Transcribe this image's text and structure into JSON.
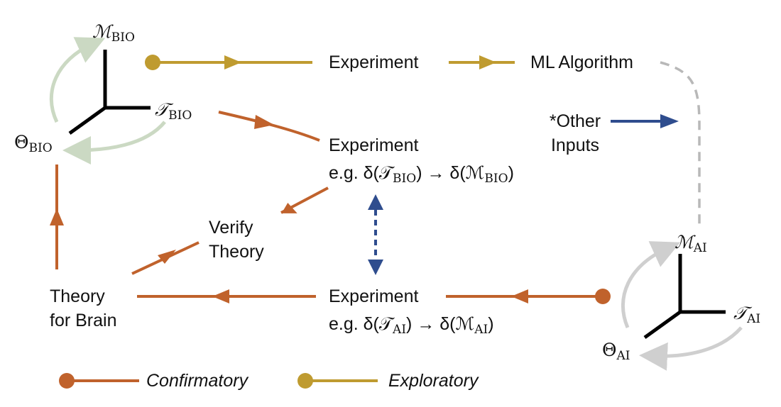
{
  "colors": {
    "confirmatory": "#C0622C",
    "exploratory": "#BF9B30",
    "bidirectional": "#2F4D8E",
    "bio_loop": "#CBD9C3",
    "ai_loop": "#CFCFCF",
    "dashed": "#B8B8B8",
    "axes": "#000000"
  },
  "bio": {
    "m_symbol": "ℳ",
    "m_sub": "BIO",
    "t_symbol": "𝒯",
    "t_sub": "BIO",
    "theta_symbol": "Θ",
    "theta_sub": "BIO"
  },
  "ai": {
    "m_symbol": "ℳ",
    "m_sub": "AI",
    "t_symbol": "𝒯",
    "t_sub": "AI",
    "theta_symbol": "Θ",
    "theta_sub": "AI"
  },
  "nodes": {
    "experiment_top": "Experiment",
    "ml_algorithm": "ML Algorithm",
    "other_inputs_line1": "*Other",
    "other_inputs_line2": "Inputs",
    "experiment_bio": "Experiment",
    "experiment_bio_eg": "e.g. δ(𝒯",
    "experiment_bio_eg_sub1": "BIO",
    "experiment_bio_eg_mid": ") → δ(ℳ",
    "experiment_bio_eg_sub2": "BIO",
    "experiment_bio_eg_end": ")",
    "verify_line1": "Verify",
    "verify_line2": "Theory",
    "experiment_ai": "Experiment",
    "experiment_ai_eg": "e.g. δ(𝒯",
    "experiment_ai_eg_sub1": "AI",
    "experiment_ai_eg_mid": ") → δ(ℳ",
    "experiment_ai_eg_sub2": "AI",
    "experiment_ai_eg_end": ")",
    "theory_line1": "Theory",
    "theory_line2": "for Brain"
  },
  "legend": {
    "confirmatory": "Confirmatory",
    "exploratory": "Exploratory"
  }
}
